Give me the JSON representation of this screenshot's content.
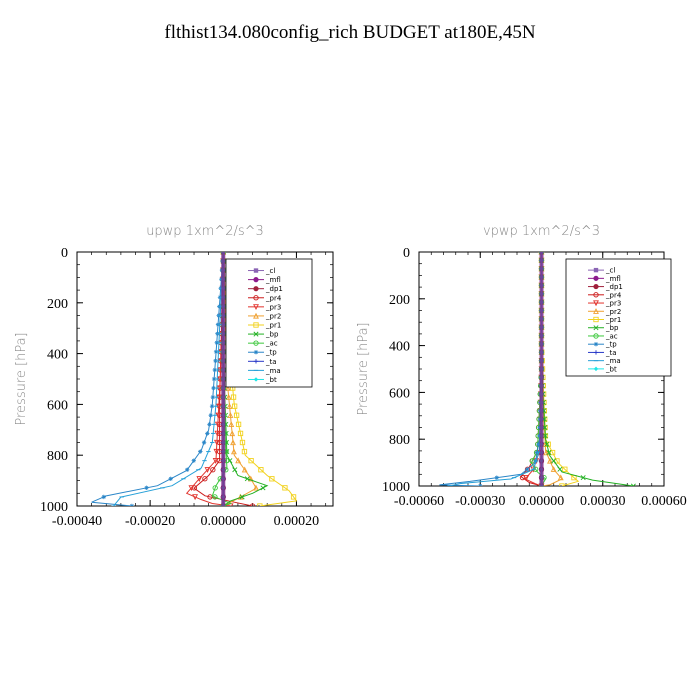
{
  "page": {
    "title": "flthist134.080config_rich  BUDGET at180E,45N"
  },
  "chart_data": [
    {
      "type": "line",
      "panel_id": "left",
      "title": "upwp   1xm^2/s^3",
      "xlabel": "",
      "ylabel": "Pressure [hPa]",
      "xlim": [
        -0.0004,
        0.0003
      ],
      "ylim": [
        1000,
        0
      ],
      "x_ticks": [
        -0.0004,
        -0.0002,
        0.0,
        0.0002
      ],
      "x_tick_labels": [
        "-0.00040",
        "-0.00020",
        "0.00000",
        "0.00020"
      ],
      "y_ticks": [
        0,
        200,
        400,
        600,
        800,
        1000
      ],
      "y_tick_labels": [
        "0",
        "200",
        "400",
        "600",
        "800",
        "1000"
      ],
      "legend_position": "upper-right",
      "series": [
        {
          "name": "_cl",
          "color": "#8a64b4",
          "marker": "square",
          "points": [
            [
              0.0,
              0
            ],
            [
              0.0,
              200
            ],
            [
              0.0,
              400
            ],
            [
              0.0,
              600
            ],
            [
              0.0,
              800
            ],
            [
              0.0,
              1000
            ]
          ]
        },
        {
          "name": "_mfl",
          "color": "#8c1a8c",
          "marker": "circle",
          "points": [
            [
              0.0,
              0
            ],
            [
              0.0,
              200
            ],
            [
              0.0,
              400
            ],
            [
              0.0,
              600
            ],
            [
              0.0,
              800
            ],
            [
              0.0,
              1000
            ]
          ]
        },
        {
          "name": "_dp1",
          "color": "#a0203c",
          "marker": "circle",
          "points": [
            [
              0.0,
              0
            ],
            [
              0.0,
              200
            ],
            [
              0.0,
              400
            ],
            [
              0.0,
              600
            ],
            [
              0.0,
              800
            ],
            [
              0.0,
              1000
            ]
          ]
        },
        {
          "name": "_pr4",
          "color": "#cc1a1a",
          "marker": "circle-open",
          "points": [
            [
              0.0,
              0
            ],
            [
              -5e-06,
              300
            ],
            [
              -1e-05,
              600
            ],
            [
              -1e-05,
              820
            ],
            [
              -4e-05,
              880
            ],
            [
              -8e-05,
              930
            ],
            [
              -5e-05,
              960
            ],
            [
              3e-05,
              985
            ],
            [
              8e-05,
              1000
            ]
          ]
        },
        {
          "name": "_pr3",
          "color": "#e2342e",
          "marker": "triangle-down",
          "points": [
            [
              0.0,
              0
            ],
            [
              -5e-06,
              400
            ],
            [
              -2e-05,
              820
            ],
            [
              -7e-05,
              900
            ],
            [
              -0.0001,
              950
            ],
            [
              -6e-05,
              975
            ],
            [
              -3e-05,
              990
            ],
            [
              2e-05,
              1000
            ]
          ]
        },
        {
          "name": "_pr2",
          "color": "#f0a030",
          "marker": "triangle-up",
          "points": [
            [
              0.0,
              0
            ],
            [
              1e-05,
              500
            ],
            [
              3e-05,
              800
            ],
            [
              7e-05,
              880
            ],
            [
              9e-05,
              930
            ],
            [
              4e-05,
              970
            ],
            [
              0.0,
              1000
            ]
          ]
        },
        {
          "name": "_pr1",
          "color": "#f2d21e",
          "marker": "square-open",
          "points": [
            [
              0.0,
              0
            ],
            [
              1e-05,
              300
            ],
            [
              3e-05,
              600
            ],
            [
              6e-05,
              800
            ],
            [
              0.00012,
              880
            ],
            [
              0.00018,
              940
            ],
            [
              0.0002,
              980
            ],
            [
              0.0001,
              1000
            ]
          ]
        },
        {
          "name": "_bp",
          "color": "#22b022",
          "marker": "x",
          "points": [
            [
              0.0,
              0
            ],
            [
              0.0,
              400
            ],
            [
              1e-05,
              800
            ],
            [
              4e-05,
              880
            ],
            [
              0.00012,
              920
            ],
            [
              8e-05,
              950
            ],
            [
              2e-05,
              980
            ],
            [
              0.0,
              1000
            ]
          ]
        },
        {
          "name": "_ac",
          "color": "#3cc83c",
          "marker": "circle-open",
          "points": [
            [
              0.0,
              0
            ],
            [
              0.0,
              600
            ],
            [
              1e-05,
              850
            ],
            [
              -2e-05,
              920
            ],
            [
              -3e-05,
              960
            ],
            [
              2e-05,
              990
            ],
            [
              0.0,
              1000
            ]
          ]
        },
        {
          "name": "_tp",
          "color": "#2a86c8",
          "marker": "star",
          "points": [
            [
              0.0,
              0
            ],
            [
              -1e-05,
              200
            ],
            [
              -2e-05,
              400
            ],
            [
              -3e-05,
              600
            ],
            [
              -4e-05,
              700
            ],
            [
              -6e-05,
              780
            ],
            [
              -0.0001,
              860
            ],
            [
              -0.00018,
              920
            ],
            [
              -0.00032,
              960
            ],
            [
              -0.00036,
              985
            ],
            [
              -0.00025,
              1000
            ]
          ]
        },
        {
          "name": "_ta",
          "color": "#2838c8",
          "marker": "plus",
          "points": [
            [
              0.0,
              0
            ],
            [
              0.0,
              200
            ],
            [
              0.0,
              400
            ],
            [
              0.0,
              600
            ],
            [
              0.0,
              800
            ],
            [
              0.0,
              1000
            ]
          ]
        },
        {
          "name": "_ma",
          "color": "#26a0d8",
          "marker": "dash",
          "points": [
            [
              0.0,
              0
            ],
            [
              -1e-05,
              300
            ],
            [
              -2e-05,
              600
            ],
            [
              -3e-05,
              750
            ],
            [
              -6e-05,
              850
            ],
            [
              -0.00014,
              920
            ],
            [
              -0.00028,
              965
            ],
            [
              -0.0003,
              1000
            ]
          ]
        },
        {
          "name": "_bt",
          "color": "#1ee6e6",
          "marker": "diamond",
          "points": [
            [
              0.0,
              0
            ],
            [
              0.0,
              200
            ],
            [
              0.0,
              400
            ],
            [
              0.0,
              600
            ],
            [
              0.0,
              800
            ],
            [
              0.0,
              1000
            ]
          ]
        }
      ]
    },
    {
      "type": "line",
      "panel_id": "right",
      "title": "vpwp   1xm^2/s^3",
      "xlabel": "",
      "ylabel": "Pressure [hPa]",
      "xlim": [
        -0.0006,
        0.0006
      ],
      "ylim": [
        1000,
        0
      ],
      "x_ticks": [
        -0.0006,
        -0.0003,
        0.0,
        0.0003,
        0.0006
      ],
      "x_tick_labels": [
        "-0.00060",
        "-0.00030",
        "0.00000",
        "0.00030",
        "0.00060"
      ],
      "y_ticks": [
        0,
        200,
        400,
        600,
        800,
        1000
      ],
      "y_tick_labels": [
        "0",
        "200",
        "400",
        "600",
        "800",
        "1000"
      ],
      "legend_position": "upper-right",
      "series": [
        {
          "name": "_cl",
          "color": "#8a64b4",
          "marker": "square",
          "points": [
            [
              0.0,
              0
            ],
            [
              0.0,
              200
            ],
            [
              0.0,
              400
            ],
            [
              0.0,
              600
            ],
            [
              0.0,
              800
            ],
            [
              0.0,
              1000
            ]
          ]
        },
        {
          "name": "_mfl",
          "color": "#8c1a8c",
          "marker": "circle",
          "points": [
            [
              0.0,
              0
            ],
            [
              0.0,
              200
            ],
            [
              0.0,
              400
            ],
            [
              0.0,
              600
            ],
            [
              0.0,
              800
            ],
            [
              0.0,
              1000
            ]
          ]
        },
        {
          "name": "_dp1",
          "color": "#a0203c",
          "marker": "circle",
          "points": [
            [
              0.0,
              0
            ],
            [
              0.0,
              200
            ],
            [
              0.0,
              400
            ],
            [
              0.0,
              600
            ],
            [
              0.0,
              800
            ],
            [
              0.0,
              1000
            ]
          ]
        },
        {
          "name": "_pr4",
          "color": "#cc1a1a",
          "marker": "circle-open",
          "points": [
            [
              0.0,
              0
            ],
            [
              0.0,
              500
            ],
            [
              -2e-05,
              850
            ],
            [
              -6e-05,
              920
            ],
            [
              -0.0001,
              960
            ],
            [
              -6e-05,
              985
            ],
            [
              0.0,
              1000
            ]
          ]
        },
        {
          "name": "_pr3",
          "color": "#e2342e",
          "marker": "triangle-down",
          "points": [
            [
              0.0,
              0
            ],
            [
              0.0,
              500
            ],
            [
              -1e-05,
              850
            ],
            [
              -4e-05,
              930
            ],
            [
              -8e-05,
              970
            ],
            [
              -3e-05,
              990
            ],
            [
              0.0,
              1000
            ]
          ]
        },
        {
          "name": "_pr2",
          "color": "#f0a030",
          "marker": "triangle-up",
          "points": [
            [
              0.0,
              0
            ],
            [
              0.0,
              500
            ],
            [
              2e-05,
              850
            ],
            [
              6e-05,
              930
            ],
            [
              0.0001,
              970
            ],
            [
              4e-05,
              995
            ],
            [
              0.0,
              1000
            ]
          ]
        },
        {
          "name": "_pr1",
          "color": "#f2d21e",
          "marker": "square-open",
          "points": [
            [
              0.0,
              0
            ],
            [
              0.0,
              400
            ],
            [
              2e-05,
              800
            ],
            [
              8e-05,
              900
            ],
            [
              0.00014,
              950
            ],
            [
              0.00018,
              980
            ],
            [
              0.0001,
              1000
            ]
          ]
        },
        {
          "name": "_bp",
          "color": "#22b022",
          "marker": "x",
          "points": [
            [
              0.0,
              0
            ],
            [
              0.0,
              500
            ],
            [
              2e-05,
              800
            ],
            [
              4e-05,
              870
            ],
            [
              0.0001,
              940
            ],
            [
              0.00025,
              975
            ],
            [
              0.00045,
              1000
            ]
          ]
        },
        {
          "name": "_ac",
          "color": "#3cc83c",
          "marker": "circle-open",
          "points": [
            [
              0.0,
              0
            ],
            [
              0.0,
              500
            ],
            [
              -2e-05,
              850
            ],
            [
              -5e-05,
              900
            ],
            [
              -2e-05,
              940
            ],
            [
              2e-05,
              970
            ],
            [
              0.0,
              1000
            ]
          ]
        },
        {
          "name": "_tp",
          "color": "#2a86c8",
          "marker": "star",
          "points": [
            [
              0.0,
              0
            ],
            [
              0.0,
              500
            ],
            [
              -1e-05,
              800
            ],
            [
              -3e-05,
              900
            ],
            [
              -0.0001,
              950
            ],
            [
              -0.00035,
              980
            ],
            [
              -0.0005,
              995
            ],
            [
              -0.0003,
              1000
            ]
          ]
        },
        {
          "name": "_ta",
          "color": "#2838c8",
          "marker": "plus",
          "points": [
            [
              0.0,
              0
            ],
            [
              0.0,
              200
            ],
            [
              0.0,
              400
            ],
            [
              0.0,
              600
            ],
            [
              0.0,
              800
            ],
            [
              0.0,
              1000
            ]
          ]
        },
        {
          "name": "_ma",
          "color": "#26a0d8",
          "marker": "dash",
          "points": [
            [
              0.0,
              0
            ],
            [
              0.0,
              500
            ],
            [
              -1e-05,
              850
            ],
            [
              -4e-05,
              930
            ],
            [
              -0.00015,
              970
            ],
            [
              -0.0004,
              990
            ],
            [
              -0.00045,
              1000
            ]
          ]
        },
        {
          "name": "_bt",
          "color": "#1ee6e6",
          "marker": "diamond",
          "points": [
            [
              0.0,
              0
            ],
            [
              0.0,
              200
            ],
            [
              0.0,
              400
            ],
            [
              0.0,
              600
            ],
            [
              0.0,
              800
            ],
            [
              0.0,
              1000
            ]
          ]
        }
      ]
    }
  ]
}
